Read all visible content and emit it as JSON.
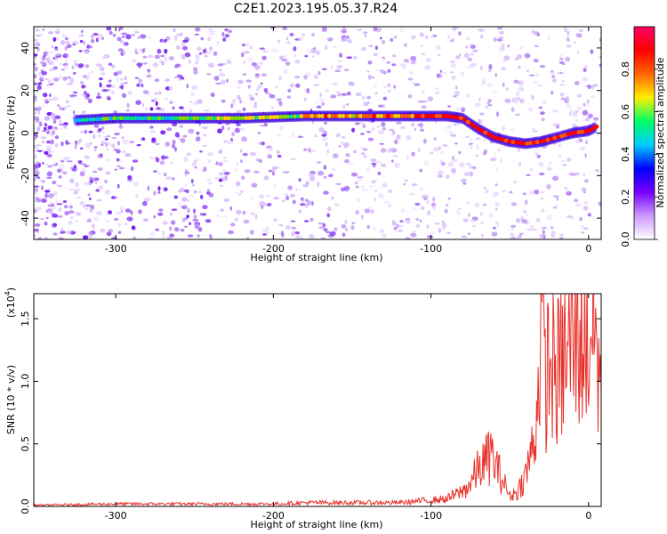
{
  "title": "C2E1.2023.195.05.37.R24",
  "chart_data": [
    {
      "type": "heatmap",
      "xlabel": "Height of straight line (km)",
      "ylabel": "Frequency (Hz)",
      "xlim": [
        -352,
        8
      ],
      "ylim": [
        -50,
        50
      ],
      "xticks": [
        -300,
        -200,
        -100,
        0
      ],
      "xtick_labels": [
        "-300",
        "-200",
        "-100",
        "0"
      ],
      "yticks": [
        -40,
        -20,
        0,
        20,
        40
      ],
      "ytick_labels": [
        "-40",
        "-20",
        "0",
        "20",
        "40"
      ],
      "ridge": {
        "x": [
          -325,
          -300,
          -260,
          -220,
          -180,
          -150,
          -120,
          -100,
          -90,
          -80,
          -70,
          -60,
          -50,
          -40,
          -30,
          -20,
          -10,
          0,
          5
        ],
        "y": [
          6,
          7,
          7,
          7,
          8,
          8,
          8,
          8,
          8,
          7,
          2,
          -2,
          -4,
          -5,
          -4,
          -2,
          0,
          1,
          3
        ]
      },
      "colorbar": {
        "label": "Normalized spectral amplitude",
        "range": [
          0,
          1
        ],
        "ticks": [
          0.0,
          0.2,
          0.4,
          0.6,
          0.8
        ],
        "tick_labels": [
          "0.0",
          "0.2",
          "0.4",
          "0.6",
          "0.8"
        ],
        "colors": [
          "#ffffff",
          "#cc99ff",
          "#7700ff",
          "#0000ff",
          "#00ccff",
          "#00ff66",
          "#ffee00",
          "#ff6600",
          "#ff0000",
          "#ff0066"
        ]
      },
      "grid": false
    },
    {
      "type": "line",
      "xlabel": "Height of straight line (km)",
      "ylabel": "SNR (10 * v/v)",
      "y_multiplier_label": "(x10",
      "y_multiplier_exp": "4",
      "y_multiplier_close": ")",
      "xlim": [
        -352,
        8
      ],
      "ylim": [
        0,
        1.7
      ],
      "xticks": [
        -300,
        -200,
        -100,
        0
      ],
      "xtick_labels": [
        "-300",
        "-200",
        "-100",
        "0"
      ],
      "yticks": [
        0.0,
        0.5,
        1.0,
        1.5
      ],
      "ytick_labels": [
        "0.0",
        "0.5",
        "1.0",
        "1.5"
      ],
      "series": [
        {
          "color": "#e8302a",
          "x": [
            -352,
            -300,
            -250,
            -200,
            -180,
            -150,
            -120,
            -110,
            -100,
            -90,
            -80,
            -75,
            -70,
            -66,
            -62,
            -58,
            -54,
            -50,
            -45,
            -40,
            -35,
            -32,
            -30,
            -28,
            -25,
            -20,
            -15,
            -10,
            -5,
            0,
            3,
            6
          ],
          "y": [
            0.01,
            0.02,
            0.02,
            0.02,
            0.03,
            0.03,
            0.03,
            0.04,
            0.05,
            0.06,
            0.12,
            0.18,
            0.3,
            0.35,
            0.42,
            0.3,
            0.2,
            0.08,
            0.12,
            0.25,
            0.5,
            0.9,
            1.72,
            1.0,
            1.15,
            1.05,
            1.2,
            1.3,
            1.4,
            1.35,
            1.55,
            1.1
          ]
        }
      ],
      "grid": false
    }
  ]
}
